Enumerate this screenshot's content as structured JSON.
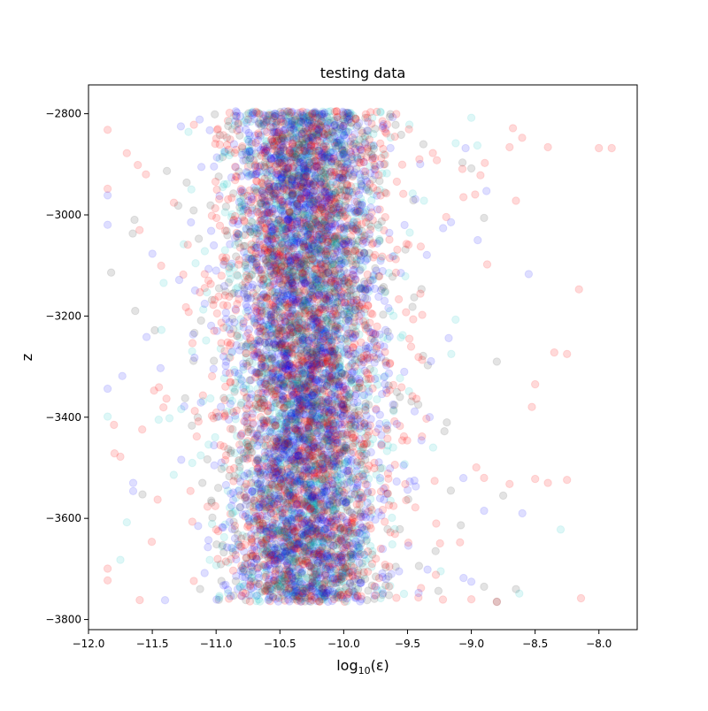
{
  "colors": {
    "series": [
      "#ff0000",
      "#404040",
      "#0000ff",
      "#00bfbf"
    ],
    "axes": "#000000",
    "background": "#ffffff"
  },
  "chart_data": {
    "type": "scatter",
    "title": "testing data",
    "xlabel_base": "log",
    "xlabel_sub": "10",
    "xlabel_arg": "(ε)",
    "ylabel": "z",
    "xlim": [
      -12.0,
      -7.7
    ],
    "ylim": [
      -3820,
      -2743
    ],
    "xticks": [
      -12.0,
      -11.5,
      -11.0,
      -10.5,
      -10.0,
      -9.5,
      -9.0,
      -8.5,
      -8.0
    ],
    "xtick_labels": [
      "−12.0",
      "−11.5",
      "−11.0",
      "−10.5",
      "−10.0",
      "−9.5",
      "−9.0",
      "−8.5",
      "−8.0"
    ],
    "yticks": [
      -3800,
      -3600,
      -3400,
      -3200,
      -3000,
      -2800
    ],
    "ytick_labels": [
      "−3800",
      "−3600",
      "−3400",
      "−3200",
      "−3000",
      "−2800"
    ],
    "grid": false,
    "legend": "none",
    "series": [
      {
        "color": "#ff0000",
        "opacity": 0.15,
        "points_per_series": 2000,
        "x_mean": -10.3,
        "x_std": 0.45,
        "y_range": [
          -3765,
          -2795
        ],
        "outliers": [
          [
            -7.9,
            -2868
          ],
          [
            -8.0,
            -2868
          ],
          [
            -8.4,
            -2866
          ],
          [
            -8.7,
            -2866
          ],
          [
            -8.65,
            -2972
          ],
          [
            -8.35,
            -3272
          ],
          [
            -8.25,
            -3275
          ],
          [
            -8.5,
            -3335
          ],
          [
            -8.25,
            -3524
          ],
          [
            -8.4,
            -3530
          ],
          [
            -8.5,
            -3522
          ],
          [
            -11.8,
            -3415
          ],
          [
            -11.75,
            -3478
          ],
          [
            -11.7,
            -2878
          ],
          [
            -11.6,
            -3030
          ],
          [
            -11.55,
            -2920
          ],
          [
            -8.8,
            -3765
          ],
          [
            -9.0,
            -3760
          ],
          [
            -8.9,
            -3520
          ],
          [
            -8.7,
            -3532
          ]
        ]
      },
      {
        "color": "#404040",
        "opacity": 0.15,
        "points_per_series": 1500,
        "x_mean": -10.3,
        "x_std": 0.4,
        "y_range": [
          -3765,
          -2795
        ],
        "outliers": [
          [
            -8.65,
            -3740
          ],
          [
            -8.9,
            -3735
          ],
          [
            -8.8,
            -3765
          ],
          [
            -8.75,
            -3555
          ],
          [
            -9.0,
            -2908
          ],
          [
            -8.9,
            -3006
          ],
          [
            -8.8,
            -3290
          ]
        ]
      },
      {
        "color": "#0000ff",
        "opacity": 0.13,
        "points_per_series": 2200,
        "x_mean": -10.3,
        "x_std": 0.4,
        "y_range": [
          -3765,
          -2795
        ],
        "outliers": [
          [
            -11.65,
            -3530
          ],
          [
            -11.65,
            -3546
          ],
          [
            -8.55,
            -3117
          ],
          [
            -8.6,
            -3590
          ],
          [
            -8.95,
            -3050
          ],
          [
            -8.9,
            -3585
          ]
        ]
      },
      {
        "color": "#00bfbf",
        "opacity": 0.13,
        "points_per_series": 1800,
        "x_mean": -10.3,
        "x_std": 0.4,
        "y_range": [
          -3765,
          -2795
        ],
        "outliers": [
          [
            -8.3,
            -3622
          ],
          [
            -9.0,
            -2808
          ],
          [
            -11.75,
            -3682
          ],
          [
            -11.7,
            -3608
          ],
          [
            -11.45,
            -3405
          ]
        ]
      }
    ]
  }
}
